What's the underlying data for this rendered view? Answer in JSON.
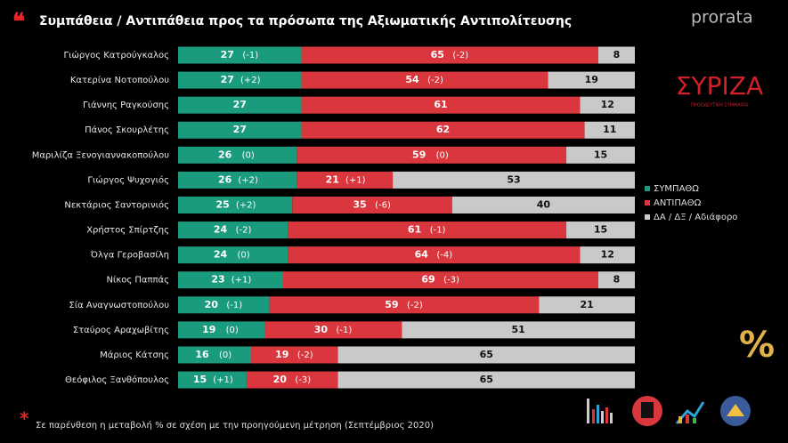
{
  "chart_data": {
    "type": "stacked-barh",
    "title": "Συμπάθεια / Αντιπάθεια προς τα πρόσωπα της Αξιωματικής Αντιπολίτευσης",
    "brand": "prorata",
    "party_logo": "ΣΥΡΙΖΑ",
    "party_subtitle": "ΠΡΟΟΔΕΥΤΙΚΗ ΣΥΜΜΑΧΙΑ",
    "percent_icon": "%",
    "footnote_mark": "*",
    "footnote": "Σε παρένθεση η μεταβολή % σε σχέση με την προηγούμενη μέτρηση (Σεπτέμβριος 2020)",
    "categories": [
      "Γιώργος Κατρούγκαλος",
      "Κατερίνα Νοτοπούλου",
      "Γιάννης Ραγκούσης",
      "Πάνος Σκουρλέτης",
      "Μαριλίζα Ξενογιαννακοπούλου",
      "Γιώργος Ψυχογιός",
      "Νεκτάριος Σαντορινιός",
      "Χρήστος Σπίρτζης",
      "Όλγα Γεροβασίλη",
      "Νίκος Παππάς",
      "Σία Αναγνωστοπούλου",
      "Σταύρος Αραχωβίτης",
      "Μάριος Κάτσης",
      "Θεόφιλος Ξανθόπουλος"
    ],
    "xlim": [
      0,
      100
    ],
    "legend_position": "right",
    "series": [
      {
        "name": "ΣΥΜΠΑΘΩ",
        "color": "#1b9b7d",
        "label_color": "#ffffff",
        "values": [
          27,
          27,
          27,
          27,
          26,
          26,
          25,
          24,
          24,
          23,
          20,
          19,
          16,
          15
        ],
        "changes": [
          "(-1)",
          "(+2)",
          null,
          null,
          "(0)",
          "(+2)",
          "(+2)",
          "(-2)",
          "(0)",
          "(+1)",
          "(-1)",
          "(0)",
          "(0)",
          "(+1)"
        ]
      },
      {
        "name": "ΑΝΤΙΠΑΘΩ",
        "color": "#d9363e",
        "label_color": "#ffffff",
        "values": [
          65,
          54,
          61,
          62,
          59,
          21,
          35,
          61,
          64,
          69,
          59,
          30,
          19,
          20
        ],
        "changes": [
          "(-2)",
          "(-2)",
          null,
          null,
          "(0)",
          "(+1)",
          "(-6)",
          "(-1)",
          "(-4)",
          "(-3)",
          "(-2)",
          "(-1)",
          "(-2)",
          "(-3)"
        ]
      },
      {
        "name": "ΔΑ / ΔΞ / Αδιάφορο",
        "color": "#c9c9c9",
        "label_color": "#111111",
        "values": [
          8,
          19,
          12,
          11,
          15,
          53,
          40,
          15,
          12,
          8,
          21,
          51,
          65,
          65
        ]
      }
    ]
  }
}
